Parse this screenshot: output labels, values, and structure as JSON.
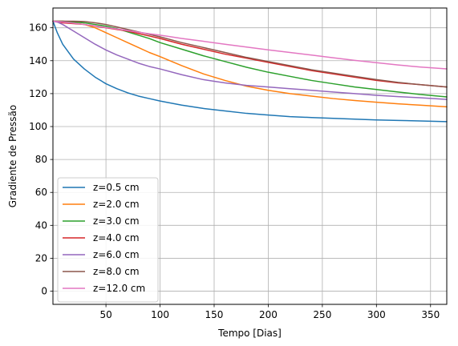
{
  "chart_data": {
    "type": "line",
    "xlabel": "Tempo [Dias]",
    "ylabel": "Gradiente de Pressão",
    "xlim": [
      1,
      365
    ],
    "ylim": [
      -8,
      172
    ],
    "xticks": [
      50,
      100,
      150,
      200,
      250,
      300,
      350
    ],
    "yticks": [
      0,
      20,
      40,
      60,
      80,
      100,
      120,
      140,
      160
    ],
    "grid": true,
    "legend_position": "lower-left",
    "x": [
      1,
      5,
      10,
      20,
      30,
      40,
      50,
      60,
      70,
      80,
      90,
      100,
      120,
      140,
      160,
      180,
      200,
      220,
      240,
      260,
      280,
      300,
      320,
      340,
      365
    ],
    "series": [
      {
        "name": "z=0.5 cm",
        "color": "#1f77b4",
        "values": [
          164,
          157,
          150,
          141,
          135,
          130,
          126,
          123,
          120.5,
          118.5,
          117,
          115.5,
          113,
          111,
          109.5,
          108,
          107,
          106,
          105.5,
          105,
          104.5,
          104,
          103.7,
          103.4,
          103
        ]
      },
      {
        "name": "z=2.0 cm",
        "color": "#ff7f0e",
        "values": [
          164,
          164,
          164,
          163,
          162,
          160,
          157,
          154,
          151,
          148,
          145,
          142.5,
          137,
          132,
          128,
          124.5,
          122,
          120,
          118.5,
          117,
          115.8,
          114.8,
          113.8,
          113,
          112
        ]
      },
      {
        "name": "z=3.0 cm",
        "color": "#2ca02c",
        "values": [
          164,
          164,
          164,
          163.5,
          163,
          162,
          161,
          159.5,
          157.5,
          155.5,
          153.5,
          151,
          147,
          143,
          139.5,
          136,
          133,
          130.5,
          128,
          126,
          124,
          122.5,
          121,
          119.5,
          118
        ]
      },
      {
        "name": "z=4.0 cm",
        "color": "#d62728",
        "values": [
          164,
          163.5,
          163,
          162.5,
          162,
          161,
          160,
          159,
          158,
          156.5,
          155,
          153.5,
          150,
          147,
          144,
          141.5,
          139,
          136.5,
          134,
          132,
          130,
          128,
          126.5,
          125.5,
          124
        ]
      },
      {
        "name": "z=6.0 cm",
        "color": "#9467bd",
        "values": [
          164,
          163.5,
          162,
          158,
          154,
          150,
          146.5,
          143.5,
          141,
          138.5,
          136.5,
          135,
          131.5,
          128.5,
          126.5,
          125,
          124,
          123,
          122,
          121,
          120,
          119,
          118.2,
          117.5,
          116.5
        ]
      },
      {
        "name": "z=8.0 cm",
        "color": "#8c564b",
        "values": [
          164,
          164,
          164,
          164,
          163.8,
          163,
          162,
          160.5,
          159,
          157.5,
          156,
          154.5,
          151,
          148,
          145,
          142,
          139.5,
          137,
          134.5,
          132.5,
          130.5,
          128.5,
          126.8,
          125.5,
          124
        ]
      },
      {
        "name": "z=12.0 cm",
        "color": "#e377c2",
        "values": [
          164,
          163.8,
          163.5,
          162.8,
          162,
          161.2,
          160.2,
          159.3,
          158.3,
          157.3,
          156.4,
          155.5,
          153.5,
          151.8,
          150,
          148.3,
          146.6,
          145,
          143.4,
          141.8,
          140.2,
          138.8,
          137.4,
          136.2,
          135
        ]
      }
    ]
  },
  "style": {
    "axis_color": "#000000",
    "grid_color": "#b0b0b0",
    "legend_border": "#cccccc"
  }
}
